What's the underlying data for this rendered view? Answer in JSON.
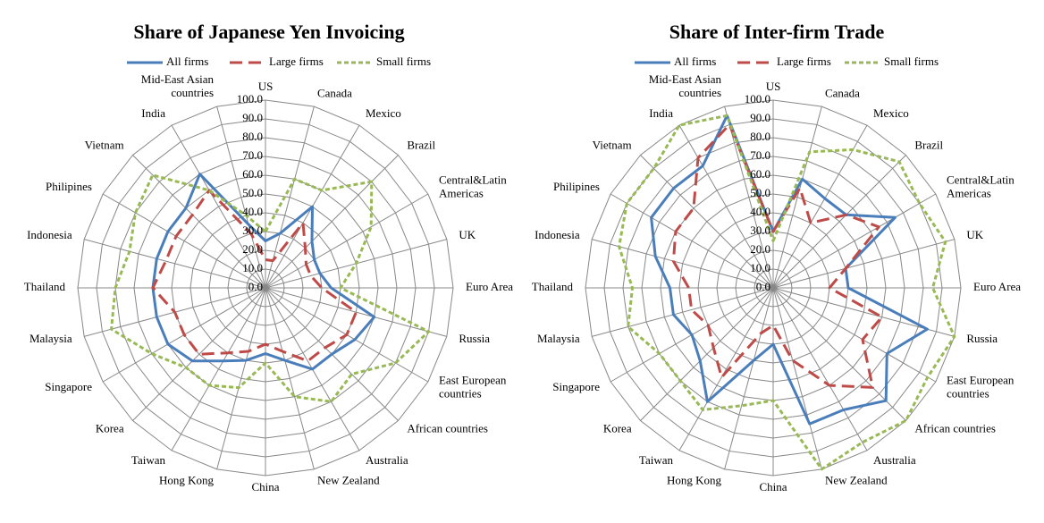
{
  "chart_data": [
    {
      "type": "radar",
      "title": "Share of Japanese Yen Invoicing",
      "categories": [
        "US",
        "Canada",
        "Mexico",
        "Brazil",
        "Central&Latin Americas",
        "UK",
        "Euro Area",
        "Russia",
        "East European countries",
        "African countries",
        "Australia",
        "New Zealand",
        "China",
        "Hong Kong",
        "Taiwan",
        "Korea",
        "Singapore",
        "Malaysia",
        "Thailand",
        "Indonesia",
        "Philipines",
        "Vietnam",
        "India",
        "Mid-East Asian countries"
      ],
      "ylim": [
        0,
        100
      ],
      "yticks": [
        {
          "value": 0,
          "label": "0.0"
        },
        {
          "value": 10,
          "label": "10.0"
        },
        {
          "value": 20,
          "label": "20.0"
        },
        {
          "value": 30,
          "label": "30.0"
        },
        {
          "value": 40,
          "label": "40.0"
        },
        {
          "value": 50,
          "label": "50.0"
        },
        {
          "value": 60,
          "label": "60.0"
        },
        {
          "value": 70,
          "label": "70.0"
        },
        {
          "value": 80,
          "label": "80.0"
        },
        {
          "value": 90,
          "label": "90.0"
        },
        {
          "value": 100,
          "label": "100.0"
        }
      ],
      "grid": true,
      "series": [
        {
          "name": "All firms",
          "color": "#4a7ebb",
          "dash": "solid",
          "values": [
            25,
            30,
            50,
            35,
            30,
            30,
            35,
            60,
            55,
            50,
            50,
            40,
            35,
            40,
            45,
            55,
            60,
            60,
            60,
            60,
            60,
            60,
            70,
            35
          ]
        },
        {
          "name": "Large firms",
          "color": "#be4b48",
          "dash": "dashed",
          "values": [
            15,
            15,
            40,
            30,
            25,
            25,
            30,
            50,
            50,
            45,
            45,
            35,
            30,
            35,
            40,
            50,
            50,
            50,
            60,
            55,
            55,
            55,
            60,
            30
          ]
        },
        {
          "name": "Small firms",
          "color": "#98b954",
          "dash": "dotted",
          "values": [
            30,
            60,
            60,
            80,
            65,
            50,
            40,
            90,
            80,
            65,
            70,
            60,
            40,
            55,
            60,
            60,
            70,
            85,
            80,
            75,
            80,
            85,
            60,
            40
          ]
        }
      ]
    },
    {
      "type": "radar",
      "title": "Share of Inter-firm Trade",
      "categories": [
        "US",
        "Canada",
        "Mexico",
        "Brazil",
        "Central&Latin Americas",
        "UK",
        "Euro Area",
        "Russia",
        "East European countries",
        "African countries",
        "Australia",
        "New Zealand",
        "China",
        "Hong Kong",
        "Taiwan",
        "Korea",
        "Singapore",
        "Malaysia",
        "Thailand",
        "Indonesia",
        "Philipines",
        "Vietnam",
        "India",
        "Mid-East Asian countries"
      ],
      "ylim": [
        0,
        100
      ],
      "yticks": [
        {
          "value": 0,
          "label": "0.0"
        },
        {
          "value": 10,
          "label": "10.0"
        },
        {
          "value": 20,
          "label": "20.0"
        },
        {
          "value": 30,
          "label": "30.0"
        },
        {
          "value": 40,
          "label": "40.0"
        },
        {
          "value": 50,
          "label": "50.0"
        },
        {
          "value": 60,
          "label": "60.0"
        },
        {
          "value": 70,
          "label": "70.0"
        },
        {
          "value": 80,
          "label": "80.0"
        },
        {
          "value": 90,
          "label": "90.0"
        },
        {
          "value": 100,
          "label": "100.0"
        }
      ],
      "grid": true,
      "series": [
        {
          "name": "All firms",
          "color": "#4a7ebb",
          "dash": "solid",
          "values": [
            30,
            60,
            55,
            55,
            75,
            40,
            40,
            85,
            70,
            85,
            75,
            75,
            30,
            40,
            70,
            55,
            50,
            55,
            55,
            65,
            75,
            75,
            75,
            95
          ]
        },
        {
          "name": "Large firms",
          "color": "#be4b48",
          "dash": "dashed",
          "values": [
            30,
            55,
            40,
            55,
            65,
            40,
            30,
            60,
            55,
            75,
            60,
            40,
            20,
            25,
            55,
            45,
            40,
            45,
            45,
            55,
            60,
            60,
            80,
            90
          ]
        },
        {
          "name": "Small firms",
          "color": "#98b954",
          "dash": "dotted",
          "values": [
            25,
            75,
            85,
            95,
            90,
            95,
            85,
            100,
            95,
            100,
            95,
            100,
            60,
            65,
            75,
            70,
            70,
            80,
            75,
            85,
            90,
            90,
            100,
            95
          ]
        }
      ]
    }
  ]
}
